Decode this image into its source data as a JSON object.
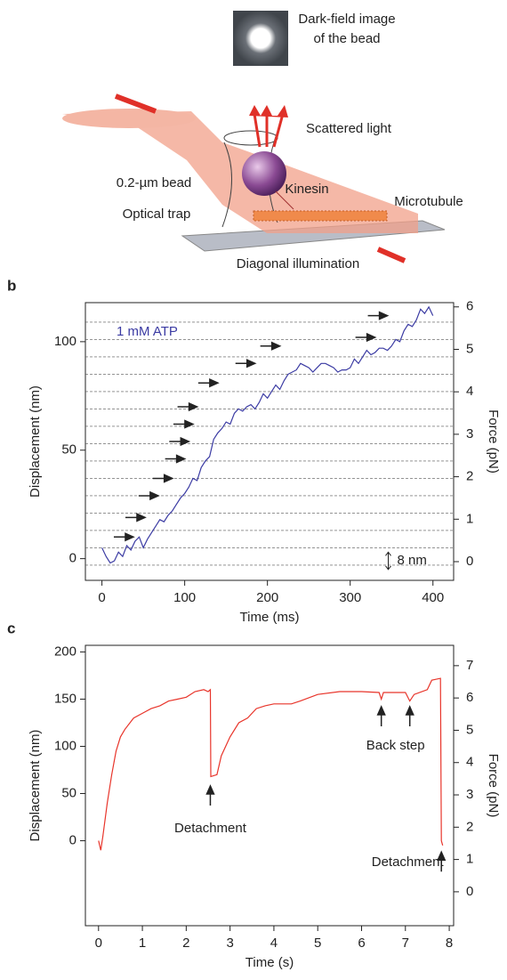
{
  "illustration": {
    "image_caption": [
      "Dark-field image",
      "of the bead"
    ],
    "scattered": "Scattered light",
    "bead": "0.2-µm bead",
    "kinesin": "Kinesin",
    "microtubule": "Microtubule",
    "trap": "Optical trap",
    "illumination": "Diagonal illumination"
  },
  "chart_data": [
    {
      "type": "line",
      "panel": "b",
      "x_label": "Time (ms)",
      "y_label": "Displacement (nm)",
      "y2_label": "Force (pN)",
      "annotation": "1 mM ATP",
      "x": [
        0,
        5,
        10,
        15,
        20,
        25,
        30,
        35,
        40,
        45,
        50,
        55,
        60,
        65,
        70,
        75,
        80,
        85,
        90,
        95,
        100,
        105,
        110,
        115,
        120,
        125,
        130,
        135,
        140,
        145,
        150,
        155,
        160,
        165,
        170,
        175,
        180,
        185,
        190,
        195,
        200,
        205,
        210,
        215,
        220,
        225,
        230,
        235,
        240,
        245,
        250,
        255,
        260,
        265,
        270,
        275,
        280,
        285,
        290,
        295,
        300,
        305,
        310,
        315,
        320,
        325,
        330,
        335,
        340,
        345,
        350,
        355,
        360,
        365,
        370,
        375,
        380,
        385,
        390,
        395,
        400
      ],
      "series": [
        {
          "color": "#3b3ba3",
          "values": [
            5,
            1,
            -2,
            -1,
            3,
            1,
            6,
            4,
            8,
            10,
            5,
            9,
            12,
            15,
            18,
            17,
            20,
            22,
            25,
            28,
            30,
            33,
            37,
            36,
            42,
            45,
            47,
            55,
            58,
            60,
            63,
            62,
            67,
            69,
            68,
            70,
            71,
            69,
            72,
            76,
            74,
            77,
            80,
            78,
            82,
            85,
            86,
            87,
            90,
            89,
            88,
            86,
            88,
            90,
            90,
            89,
            88,
            86,
            87,
            87,
            88,
            92,
            90,
            93,
            96,
            94,
            95,
            97,
            97,
            96,
            98,
            101,
            100,
            105,
            108,
            107,
            110,
            115,
            113,
            116,
            112
          ]
        }
      ],
      "step_lines": [
        -3,
        5,
        13,
        21,
        29,
        37,
        45,
        53,
        61,
        69,
        77,
        85,
        93,
        101,
        109
      ],
      "step_arrows": {
        "x": [
          38,
          52,
          68,
          85,
          100,
          105,
          110,
          115,
          140,
          185,
          215,
          330,
          345
        ],
        "y": [
          10,
          19,
          29,
          37,
          46,
          54,
          62,
          70,
          81,
          90,
          98,
          102,
          112
        ]
      },
      "scale_bar": {
        "x": 346,
        "y": [
          -5,
          3
        ],
        "label": "8 nm"
      },
      "xlim": [
        -20,
        425
      ],
      "xticks": [
        0,
        100,
        200,
        300,
        400
      ],
      "ylim": [
        -10,
        118
      ],
      "yticks": [
        0,
        50,
        100
      ],
      "y2lim": [
        -0.44,
        6.1
      ],
      "y2ticks": [
        0,
        1,
        2,
        3,
        4,
        5,
        6
      ]
    },
    {
      "type": "line",
      "panel": "c",
      "x_label": "Time (s)",
      "y_label": "Displacement (nm)",
      "y2_label": "Force (pN)",
      "x": [
        0,
        0.05,
        0.1,
        0.2,
        0.3,
        0.4,
        0.5,
        0.6,
        0.8,
        1.0,
        1.2,
        1.4,
        1.6,
        1.8,
        2.0,
        2.2,
        2.4,
        2.5,
        2.55,
        2.56,
        2.7,
        2.8,
        3.0,
        3.2,
        3.4,
        3.6,
        3.8,
        4.0,
        4.4,
        4.6,
        5.0,
        5.5,
        6.0,
        6.4,
        6.45,
        6.5,
        7.0,
        7.1,
        7.2,
        7.5,
        7.6,
        7.8,
        7.82,
        7.85
      ],
      "series": [
        {
          "color": "#e8352b",
          "values": [
            0,
            -10,
            5,
            40,
            70,
            95,
            110,
            118,
            130,
            135,
            140,
            143,
            148,
            150,
            152,
            158,
            160,
            158,
            160,
            68,
            70,
            90,
            110,
            125,
            130,
            140,
            143,
            145,
            145,
            148,
            155,
            158,
            158,
            157,
            150,
            157,
            157,
            148,
            155,
            160,
            170,
            172,
            0,
            -5
          ]
        }
      ],
      "arrows": {
        "x": [
          2.55,
          6.45,
          7.1,
          7.82
        ],
        "y": [
          58,
          142,
          142,
          -12
        ]
      },
      "arrow_labels": [
        "Detachment",
        "Back step",
        "Detachment"
      ],
      "xlim": [
        -0.3,
        8.1
      ],
      "xticks": [
        0,
        1,
        2,
        3,
        4,
        5,
        6,
        7,
        8
      ],
      "ylim": [
        -90,
        207
      ],
      "yticks": [
        0,
        50,
        100,
        150,
        200
      ],
      "y2lim": [
        -1.05,
        7.63
      ],
      "y2ticks": [
        0,
        1,
        2,
        3,
        4,
        5,
        6,
        7
      ]
    }
  ]
}
